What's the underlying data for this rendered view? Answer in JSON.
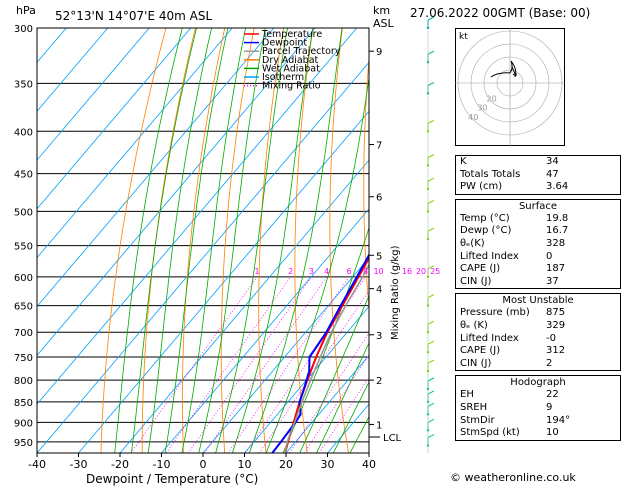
{
  "header": {
    "pressure_unit": "hPa",
    "location": "52°13'N  14°07'E  40m  ASL",
    "km_label": "km",
    "asl_label": "ASL",
    "date": "27.06.2022  00GMT  (Base: 00)"
  },
  "axes": {
    "xlabel": "Dewpoint / Temperature (°C)",
    "mixing_label": "Mixing Ratio (g/kg)",
    "lcl_label": "LCL"
  },
  "legend": [
    {
      "label": "Temperature",
      "color": "#ff0000"
    },
    {
      "label": "Dewpoint",
      "color": "#0000ff"
    },
    {
      "label": "Parcel Trajectory",
      "color": "#999999"
    },
    {
      "label": "Dry Adiabat",
      "color": "#ff8000"
    },
    {
      "label": "Wet Adiabat",
      "color": "#00aa00"
    },
    {
      "label": "Isotherm",
      "color": "#00a0ff"
    },
    {
      "label": "Mixing Ratio",
      "color": "#ff00ff"
    }
  ],
  "chart_data": {
    "type": "line",
    "title": "52°13'N  14°07'E  40m  ASL",
    "xlabel": "Dewpoint / Temperature (°C)",
    "ylabel": "hPa",
    "xlim": [
      -40,
      40
    ],
    "ylim": [
      980,
      300
    ],
    "y_scale": "log",
    "x_ticks": [
      -40,
      -30,
      -20,
      -10,
      0,
      10,
      20,
      30,
      40
    ],
    "pressure_levels": [
      300,
      350,
      400,
      450,
      500,
      550,
      600,
      650,
      700,
      750,
      800,
      850,
      900,
      950
    ],
    "km_ticks": [
      {
        "p": 320,
        "label": "9"
      },
      {
        "p": 415,
        "label": "7"
      },
      {
        "p": 480,
        "label": "6"
      },
      {
        "p": 565,
        "label": "5"
      },
      {
        "p": 620,
        "label": "4"
      },
      {
        "p": 705,
        "label": "3"
      },
      {
        "p": 800,
        "label": "2"
      },
      {
        "p": 905,
        "label": "1"
      }
    ],
    "mixing_ratio_labels": [
      "1",
      "2",
      "3",
      "4",
      "6",
      "8",
      "10",
      "16",
      "20",
      "25"
    ],
    "mixing_ratio_values": [
      1,
      2,
      3,
      4,
      6,
      8,
      10,
      16,
      20,
      25
    ],
    "lcl_pressure": 948,
    "series": [
      {
        "name": "Temperature",
        "color": "#ff0000",
        "points": [
          [
            980,
            19.8
          ],
          [
            950,
            18.2
          ],
          [
            900,
            15.6
          ],
          [
            850,
            12.8
          ],
          [
            800,
            10.2
          ],
          [
            750,
            7.6
          ],
          [
            700,
            5.2
          ],
          [
            650,
            3.4
          ],
          [
            600,
            1.4
          ],
          [
            550,
            -0.8
          ],
          [
            500,
            -3.6
          ],
          [
            450,
            -7.2
          ],
          [
            420,
            -9.6
          ]
        ]
      },
      {
        "name": "Dewpoint",
        "color": "#0000ff",
        "points": [
          [
            980,
            16.7
          ],
          [
            950,
            16.5
          ],
          [
            900,
            16.0
          ],
          [
            880,
            15.6
          ],
          [
            850,
            12.8
          ],
          [
            820,
            11.2
          ],
          [
            780,
            8.8
          ],
          [
            750,
            6.0
          ],
          [
            700,
            5.0
          ],
          [
            650,
            3.0
          ],
          [
            600,
            1.0
          ],
          [
            550,
            -1.2
          ],
          [
            530,
            -2.2
          ],
          [
            510,
            -5.0
          ],
          [
            495,
            -2.6
          ],
          [
            470,
            -4.0
          ],
          [
            450,
            -6.2
          ],
          [
            430,
            -5.6
          ],
          [
            410,
            -8.6
          ],
          [
            380,
            -12.5
          ],
          [
            350,
            -17.0
          ],
          [
            340,
            -17.6
          ],
          [
            320,
            -15.0
          ],
          [
            305,
            -17.0
          ],
          [
            300,
            -17.0
          ]
        ]
      },
      {
        "name": "Parcel Trajectory",
        "color": "#999999",
        "points": [
          [
            980,
            19.8
          ],
          [
            950,
            18.0
          ],
          [
            900,
            15.8
          ],
          [
            850,
            13.4
          ],
          [
            800,
            11.0
          ],
          [
            750,
            8.6
          ],
          [
            700,
            6.2
          ],
          [
            650,
            4.2
          ],
          [
            600,
            2.4
          ],
          [
            550,
            0.0
          ],
          [
            500,
            -2.8
          ],
          [
            450,
            -6.6
          ],
          [
            400,
            -11.0
          ],
          [
            350,
            -16.4
          ],
          [
            300,
            -23.0
          ]
        ]
      }
    ]
  },
  "hodograph": {
    "unit_label": "kt",
    "ring_labels": [
      "20",
      "30",
      "40"
    ]
  },
  "indices": [
    {
      "label": "K",
      "value": "34"
    },
    {
      "label": "Totals Totals",
      "value": "47"
    },
    {
      "label": "PW (cm)",
      "value": "3.64"
    }
  ],
  "surface": {
    "title": "Surface",
    "rows": [
      {
        "label": "Temp (°C)",
        "value": "19.8"
      },
      {
        "label": "Dewp (°C)",
        "value": "16.7"
      },
      {
        "label": "θₑ(K)",
        "value": "328"
      },
      {
        "label": "Lifted Index",
        "value": "0"
      },
      {
        "label": "CAPE (J)",
        "value": "187"
      },
      {
        "label": "CIN (J)",
        "value": "37"
      }
    ]
  },
  "most_unstable": {
    "title": "Most Unstable",
    "rows": [
      {
        "label": "Pressure (mb)",
        "value": "875"
      },
      {
        "label": "θₑ (K)",
        "value": "329"
      },
      {
        "label": "Lifted Index",
        "value": "-0"
      },
      {
        "label": "CAPE (J)",
        "value": "312"
      },
      {
        "label": "CIN (J)",
        "value": "2"
      }
    ]
  },
  "hodograph_box": {
    "title": "Hodograph",
    "rows": [
      {
        "label": "EH",
        "value": "22"
      },
      {
        "label": "SREH",
        "value": "9"
      },
      {
        "label": "StmDir",
        "value": "194°"
      },
      {
        "label": "StmSpd (kt)",
        "value": "10"
      }
    ]
  },
  "credit": "© weatheronline.co.uk"
}
